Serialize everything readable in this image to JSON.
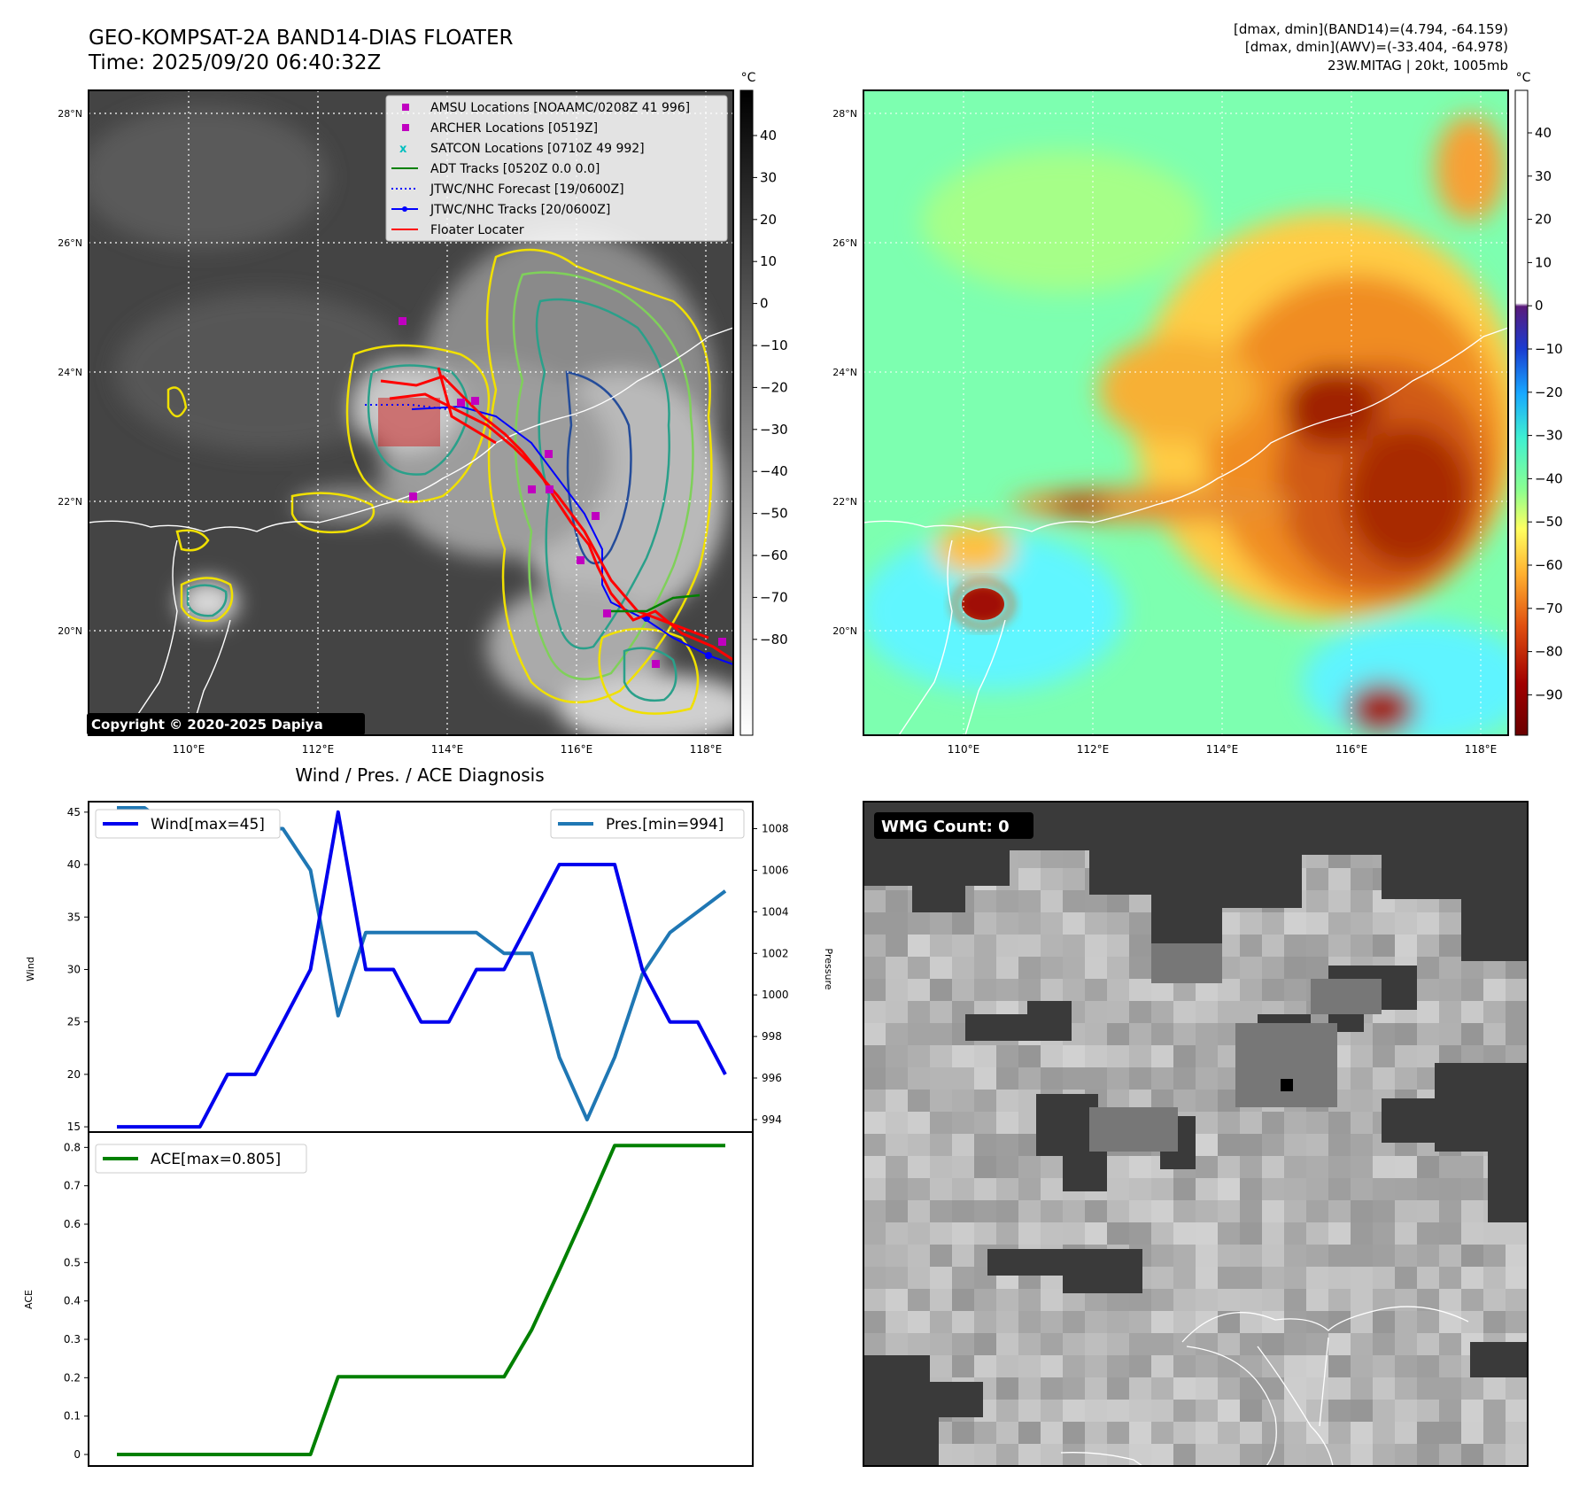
{
  "header": {
    "title_line1": "GEO-KOMPSAT-2A BAND14-DIAS FLOATER",
    "title_line2": "Time: 2025/09/20 06:40:32Z",
    "info_line1": "[dmax, dmin](BAND14)=(4.794, -64.159)",
    "info_line2": "[dmax, dmin](AWV)=(-33.404, -64.978)",
    "info_line3": "23W.MITAG | 20kt, 1005mb",
    "copyright": "Copyright © 2020-2025 Dapiya"
  },
  "colors": {
    "wind": "#0000ee",
    "pressure": "#1f77b4",
    "ace": "#008000",
    "floater": "#ff0000",
    "adt": "#008000",
    "amsu": "#c000c0",
    "satcon": "#00bfbf",
    "jtwc": "#0000ff",
    "awv_background": "#7dffb0"
  },
  "map_panels": {
    "unit": "°C",
    "lat_labels": [
      "28°N",
      "26°N",
      "24°N",
      "22°N",
      "20°N"
    ],
    "lon_labels": [
      "110°E",
      "112°E",
      "114°E",
      "116°E",
      "118°E"
    ],
    "ir_colorbar_ticks": [
      "40",
      "30",
      "20",
      "10",
      "0",
      "−10",
      "−20",
      "−30",
      "−40",
      "−50",
      "−60",
      "−70",
      "−80"
    ],
    "awv_colorbar_ticks": [
      "40",
      "30",
      "20",
      "10",
      "0",
      "−10",
      "−20",
      "−30",
      "−40",
      "−50",
      "−60",
      "−70",
      "−80",
      "−90"
    ],
    "legend": [
      {
        "label": "AMSU Locations [NOAAMC/0208Z 41 996]",
        "marker": "square",
        "color": "#c000c0"
      },
      {
        "label": "ARCHER Locations [0519Z]",
        "marker": "square",
        "color": "#c000c0"
      },
      {
        "label": "SATCON Locations [0710Z 49 992]",
        "marker": "x",
        "color": "#00bfbf"
      },
      {
        "label": "ADT Tracks [0520Z 0.0 0.0]",
        "marker": "line",
        "color": "#008000"
      },
      {
        "label": "JTWC/NHC Forecast [19/0600Z]",
        "marker": "dotted",
        "color": "#0000ff"
      },
      {
        "label": "JTWC/NHC Tracks [20/0600Z]",
        "marker": "line-dot",
        "color": "#0000ff"
      },
      {
        "label": "Floater Locater",
        "marker": "line",
        "color": "#ff0000"
      }
    ]
  },
  "wmg": {
    "label": "WMG Count: 0"
  },
  "chart_data": [
    {
      "type": "line",
      "title": "Wind / Pres. / ACE Diagnosis",
      "x": [
        0,
        1,
        2,
        3,
        4,
        5,
        6,
        7,
        8,
        9,
        10,
        11,
        12,
        13,
        14,
        15,
        16,
        17,
        18,
        19,
        20,
        21,
        22
      ],
      "ylabel": "Wind",
      "ylabel_right": "Pressure",
      "ylim": [
        14.5,
        46
      ],
      "ylim_right": [
        993.4,
        1009.3
      ],
      "yticks": [
        15,
        20,
        25,
        30,
        35,
        40,
        45
      ],
      "yticks_right": [
        994,
        996,
        998,
        1000,
        1002,
        1004,
        1006,
        1008
      ],
      "series": [
        {
          "name": "Wind[max=45]",
          "axis": "left",
          "values": [
            15,
            15,
            15,
            15,
            20,
            20,
            25,
            30,
            45,
            30,
            30,
            25,
            25,
            30,
            30,
            35,
            40,
            40,
            40,
            30,
            25,
            25,
            20
          ]
        },
        {
          "name": "Pres.[min=994]",
          "axis": "right",
          "values": [
            1009,
            1009,
            1008,
            1008,
            1008,
            1008,
            1008,
            1006,
            999,
            1003,
            1003,
            1003,
            1003,
            1003,
            1002,
            1002,
            997,
            994,
            997,
            1001,
            1003,
            1004,
            1005
          ]
        }
      ]
    },
    {
      "type": "line",
      "x": [
        0,
        1,
        2,
        3,
        4,
        5,
        6,
        7,
        8,
        9,
        10,
        11,
        12,
        13,
        14,
        15,
        16,
        17,
        18,
        19,
        20,
        21,
        22
      ],
      "ylabel": "ACE",
      "ylim": [
        -0.03,
        0.84
      ],
      "yticks": [
        0.0,
        0.1,
        0.2,
        0.3,
        0.4,
        0.5,
        0.6,
        0.7,
        0.8
      ],
      "series": [
        {
          "name": "ACE[max=0.805]",
          "values": [
            0,
            0,
            0,
            0,
            0,
            0,
            0,
            0,
            0.2025,
            0.2025,
            0.2025,
            0.2025,
            0.2025,
            0.2025,
            0.2025,
            0.325,
            0.48,
            0.64,
            0.805,
            0.805,
            0.805,
            0.805,
            0.805
          ]
        }
      ]
    }
  ]
}
